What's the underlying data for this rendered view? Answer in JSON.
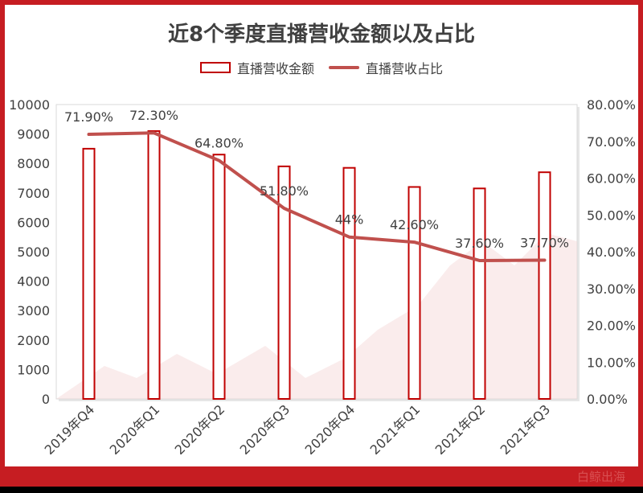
{
  "chart_data": {
    "type": "bar+line",
    "title": "近8个季度直播营收金额以及占比",
    "categories": [
      "2019年Q4",
      "2020年Q1",
      "2020年Q2",
      "2020年Q3",
      "2020年Q4",
      "2021年Q1",
      "2021年Q2",
      "2021年Q3"
    ],
    "series": [
      {
        "name": "直播营收金额",
        "type": "bar",
        "axis": "left",
        "values": [
          8500,
          9100,
          8300,
          7900,
          7850,
          7200,
          7150,
          7700
        ]
      },
      {
        "name": "直播营收占比",
        "type": "line",
        "axis": "right",
        "values": [
          71.9,
          72.3,
          64.8,
          51.8,
          44,
          42.6,
          37.6,
          37.7
        ],
        "labels": [
          "71.90%",
          "72.30%",
          "64.80%",
          "51.80%",
          "44%",
          "42.60%",
          "37.60%",
          "37.70%"
        ]
      }
    ],
    "left_axis": {
      "min": 0,
      "max": 10000,
      "ticks": [
        "0",
        "1000",
        "2000",
        "3000",
        "4000",
        "5000",
        "6000",
        "7000",
        "8000",
        "9000",
        "10000"
      ]
    },
    "right_axis": {
      "min": 0,
      "max": 80,
      "ticks": [
        "0.00%",
        "10.00%",
        "20.00%",
        "30.00%",
        "40.00%",
        "50.00%",
        "60.00%",
        "70.00%",
        "80.00%"
      ]
    },
    "grid": false,
    "legend": "top-center",
    "colors": {
      "bar_stroke": "#c00000",
      "line": "#c0504d",
      "frame": "#c61d22"
    }
  },
  "watermark": "白鲸出海"
}
